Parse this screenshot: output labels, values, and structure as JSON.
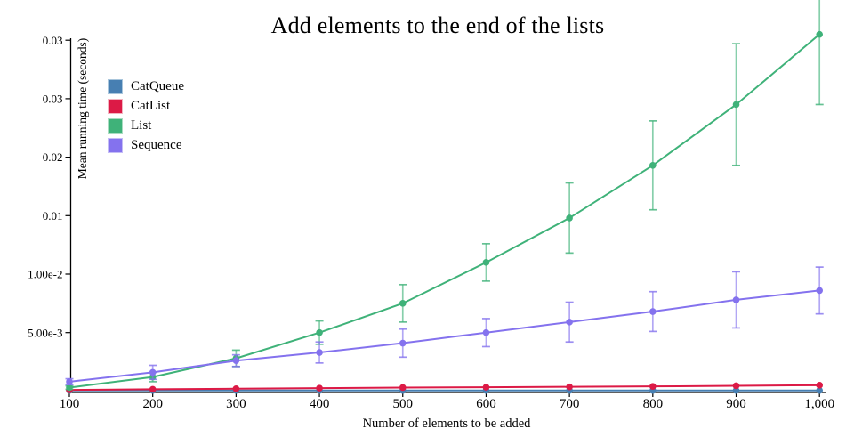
{
  "chart_data": {
    "type": "line",
    "title": "Add elements to the end of the lists",
    "xlabel": "Number of elements to be added",
    "ylabel": "Mean running time (seconds)",
    "grid": false,
    "legend_position": "upper-left-inside",
    "xlim": [
      100,
      1000
    ],
    "ylim": [
      0,
      0.0334
    ],
    "x": [
      100,
      200,
      300,
      400,
      500,
      600,
      700,
      800,
      900,
      1000
    ],
    "x_ticks": [
      {
        "value": 100,
        "label": "100"
      },
      {
        "value": 200,
        "label": "200"
      },
      {
        "value": 300,
        "label": "300"
      },
      {
        "value": 400,
        "label": "400"
      },
      {
        "value": 500,
        "label": "500"
      },
      {
        "value": 600,
        "label": "600"
      },
      {
        "value": 700,
        "label": "700"
      },
      {
        "value": 800,
        "label": "800"
      },
      {
        "value": 900,
        "label": "900"
      },
      {
        "value": 1000,
        "label": "1,000"
      }
    ],
    "y_ticks": [
      {
        "value": 0.005,
        "label": "5.00e-3"
      },
      {
        "value": 0.01,
        "label": "1.00e-2"
      },
      {
        "value": 0.015,
        "label": "0.01"
      },
      {
        "value": 0.02,
        "label": "0.02"
      },
      {
        "value": 0.025,
        "label": "0.03"
      },
      {
        "value": 0.03,
        "label": "0.03"
      }
    ],
    "series": [
      {
        "name": "CatQueue",
        "color": "#477fb2",
        "swatch_border": "#a9c6dc",
        "values": [
          5e-05,
          5e-05,
          5e-05,
          5e-05,
          5e-05,
          5e-05,
          5e-05,
          5e-05,
          5e-05,
          5e-05
        ],
        "errors": [
          0,
          0,
          0,
          0,
          0,
          0,
          0,
          0,
          0,
          0
        ]
      },
      {
        "name": "CatList",
        "color": "#dc1a46",
        "swatch_border": "#f2b4c0",
        "values": [
          0.0001,
          0.00015,
          0.0002,
          0.00025,
          0.0003,
          0.00033,
          0.00036,
          0.0004,
          0.00045,
          0.0005
        ],
        "errors": [
          0,
          0,
          0,
          0,
          0,
          0,
          0,
          0,
          0,
          0
        ]
      },
      {
        "name": "List",
        "color": "#3fb279",
        "swatch_border": "#a8dcc0",
        "values": [
          0.0003,
          0.0012,
          0.0028,
          0.005,
          0.0075,
          0.011,
          0.0148,
          0.0193,
          0.0245,
          0.0305
        ],
        "errors": [
          0.00015,
          0.0004,
          0.0007,
          0.001,
          0.0016,
          0.0016,
          0.003,
          0.0038,
          0.0052,
          0.006
        ]
      },
      {
        "name": "Sequence",
        "color": "#8472ee",
        "swatch_border": "#c4bcf6",
        "values": [
          0.0008,
          0.0016,
          0.0026,
          0.0033,
          0.0041,
          0.005,
          0.0059,
          0.0068,
          0.0078,
          0.0086
        ],
        "errors": [
          0.00025,
          0.0006,
          0.0005,
          0.0009,
          0.0012,
          0.0012,
          0.0017,
          0.0017,
          0.0024,
          0.002
        ]
      }
    ]
  }
}
